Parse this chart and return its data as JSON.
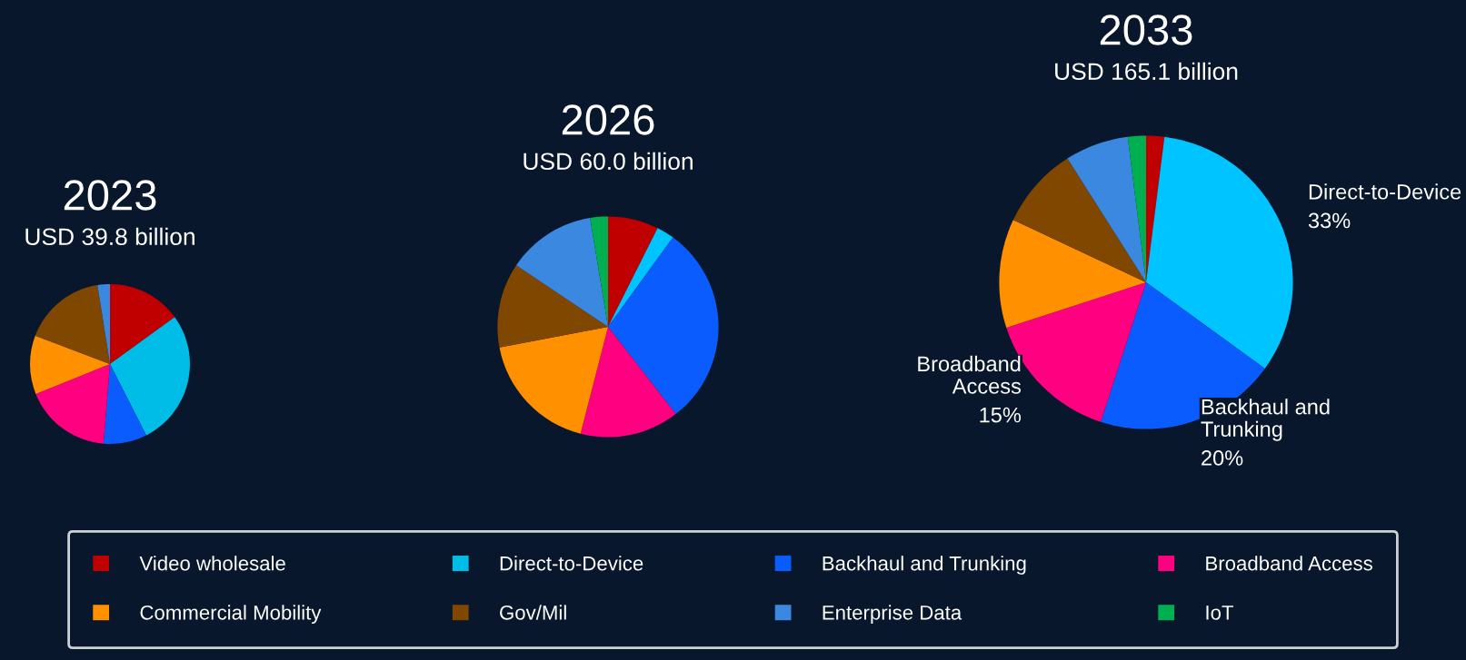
{
  "chart_data": [
    {
      "type": "pie",
      "title": "2023",
      "subtitle": "USD 39.8 billion",
      "legend": "bottom",
      "categories": [
        "Video wholesale",
        "Direct-to-Device",
        "Backhaul and Trunking",
        "Broadband Access",
        "Commercial Mobility",
        "Gov/Mil",
        "Enterprise Data",
        "IoT"
      ],
      "values": [
        15,
        27.5,
        8.8,
        17.6,
        11.9,
        16.7,
        2.5,
        0
      ],
      "colors": [
        "#c00000",
        "#00bde8",
        "#0a5cff",
        "#ff0080",
        "#ff9000",
        "#7f4700",
        "#3a88e0",
        "#00b050"
      ]
    },
    {
      "type": "pie",
      "title": "2026",
      "subtitle": "USD 60.0 billion",
      "categories": [
        null,
        null,
        null,
        null,
        null,
        null,
        null,
        null
      ],
      "values": [
        7.4,
        2.6,
        29.5,
        14.5,
        18,
        12.4,
        13,
        2.6
      ],
      "colors": [
        "#c00000",
        "#00c4ff",
        "#0a5cff",
        "#ff0080",
        "#ff9000",
        "#7f4700",
        "#3a88e0",
        "#00b050"
      ]
    },
    {
      "type": "pie",
      "title": "2033",
      "subtitle": "USD 165.1 billion",
      "categories": [
        null,
        "Direct-to-Device",
        "Backhaul and Trunking",
        "Broadband Access",
        null,
        null,
        null,
        null
      ],
      "values": [
        2,
        33,
        20,
        15,
        12,
        9,
        7,
        2
      ],
      "value_labels": [
        null,
        "33%",
        "20%",
        "15%",
        null,
        null,
        null,
        null
      ],
      "colors": [
        "#c00000",
        "#00c4ff",
        "#0a5cff",
        "#ff0080",
        "#ff9000",
        "#7f4700",
        "#3a88e0",
        "#00b050"
      ]
    }
  ]
}
